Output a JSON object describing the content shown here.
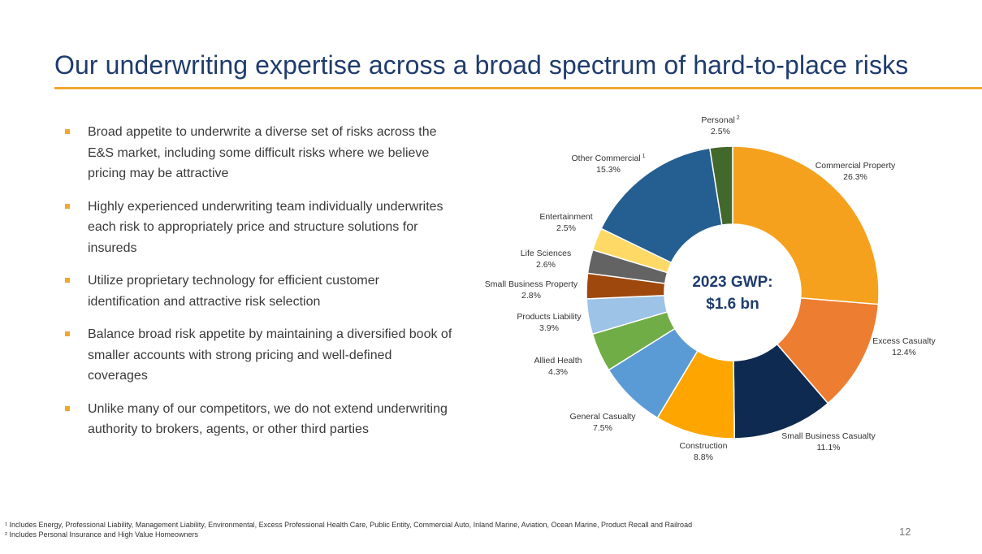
{
  "slide": {
    "title": "Our underwriting expertise across a broad spectrum of hard-to-place risks",
    "page_number": "12",
    "accent_color": "#f2a72e",
    "title_color": "#1f3c6e"
  },
  "bullets": [
    "Broad appetite to underwrite a diverse set of risks across the E&S market, including some difficult risks where we believe pricing may be attractive",
    "Highly experienced underwriting team individually underwrites each risk to appropriately price and structure solutions for insureds",
    "Utilize proprietary technology for efficient customer identification and attractive risk selection",
    "Balance broad risk appetite by maintaining a diversified book of smaller accounts with strong pricing and well-defined coverages",
    "Unlike many of our competitors, we do not extend underwriting authority to brokers, agents, or other third parties"
  ],
  "footnotes": {
    "note1": "¹ Includes Energy, Professional Liability, Management Liability, Environmental, Excess Professional Health Care, Public Entity, Commercial Auto, Inland Marine, Aviation, Ocean Marine, Product Recall and Railroad",
    "note2": "² Includes Personal Insurance and High Value Homeowners"
  },
  "chart_data": {
    "type": "pie",
    "donut": true,
    "center_label_line1": "2023 GWP:",
    "center_label_line2": "$1.6 bn",
    "slices": [
      {
        "label": "Commercial Property",
        "value": 26.3,
        "display": "26.3%",
        "color": "#f5a11e",
        "sup": ""
      },
      {
        "label": "Excess Casualty",
        "value": 12.4,
        "display": "12.4%",
        "color": "#ed7d31",
        "sup": ""
      },
      {
        "label": "Small Business Casualty",
        "value": 11.1,
        "display": "11.1%",
        "color": "#0e2a51",
        "sup": ""
      },
      {
        "label": "Construction",
        "value": 8.8,
        "display": "8.8%",
        "color": "#ffa500",
        "sup": ""
      },
      {
        "label": "General Casualty",
        "value": 7.5,
        "display": "7.5%",
        "color": "#5b9bd5",
        "sup": ""
      },
      {
        "label": "Allied Health",
        "value": 4.3,
        "display": "4.3%",
        "color": "#70ad47",
        "sup": ""
      },
      {
        "label": "Products Liability",
        "value": 3.9,
        "display": "3.9%",
        "color": "#9dc3e6",
        "sup": ""
      },
      {
        "label": "Small Business Property",
        "value": 2.8,
        "display": "2.8%",
        "color": "#9e480e",
        "sup": ""
      },
      {
        "label": "Life Sciences",
        "value": 2.6,
        "display": "2.6%",
        "color": "#636363",
        "sup": ""
      },
      {
        "label": "Entertainment",
        "value": 2.5,
        "display": "2.5%",
        "color": "#ffd966",
        "sup": ""
      },
      {
        "label": "Other Commercial",
        "value": 15.3,
        "display": "15.3%",
        "color": "#255e91",
        "sup": "1"
      },
      {
        "label": "Personal",
        "value": 2.5,
        "display": "2.5%",
        "color": "#43682b",
        "sup": "2"
      }
    ]
  }
}
